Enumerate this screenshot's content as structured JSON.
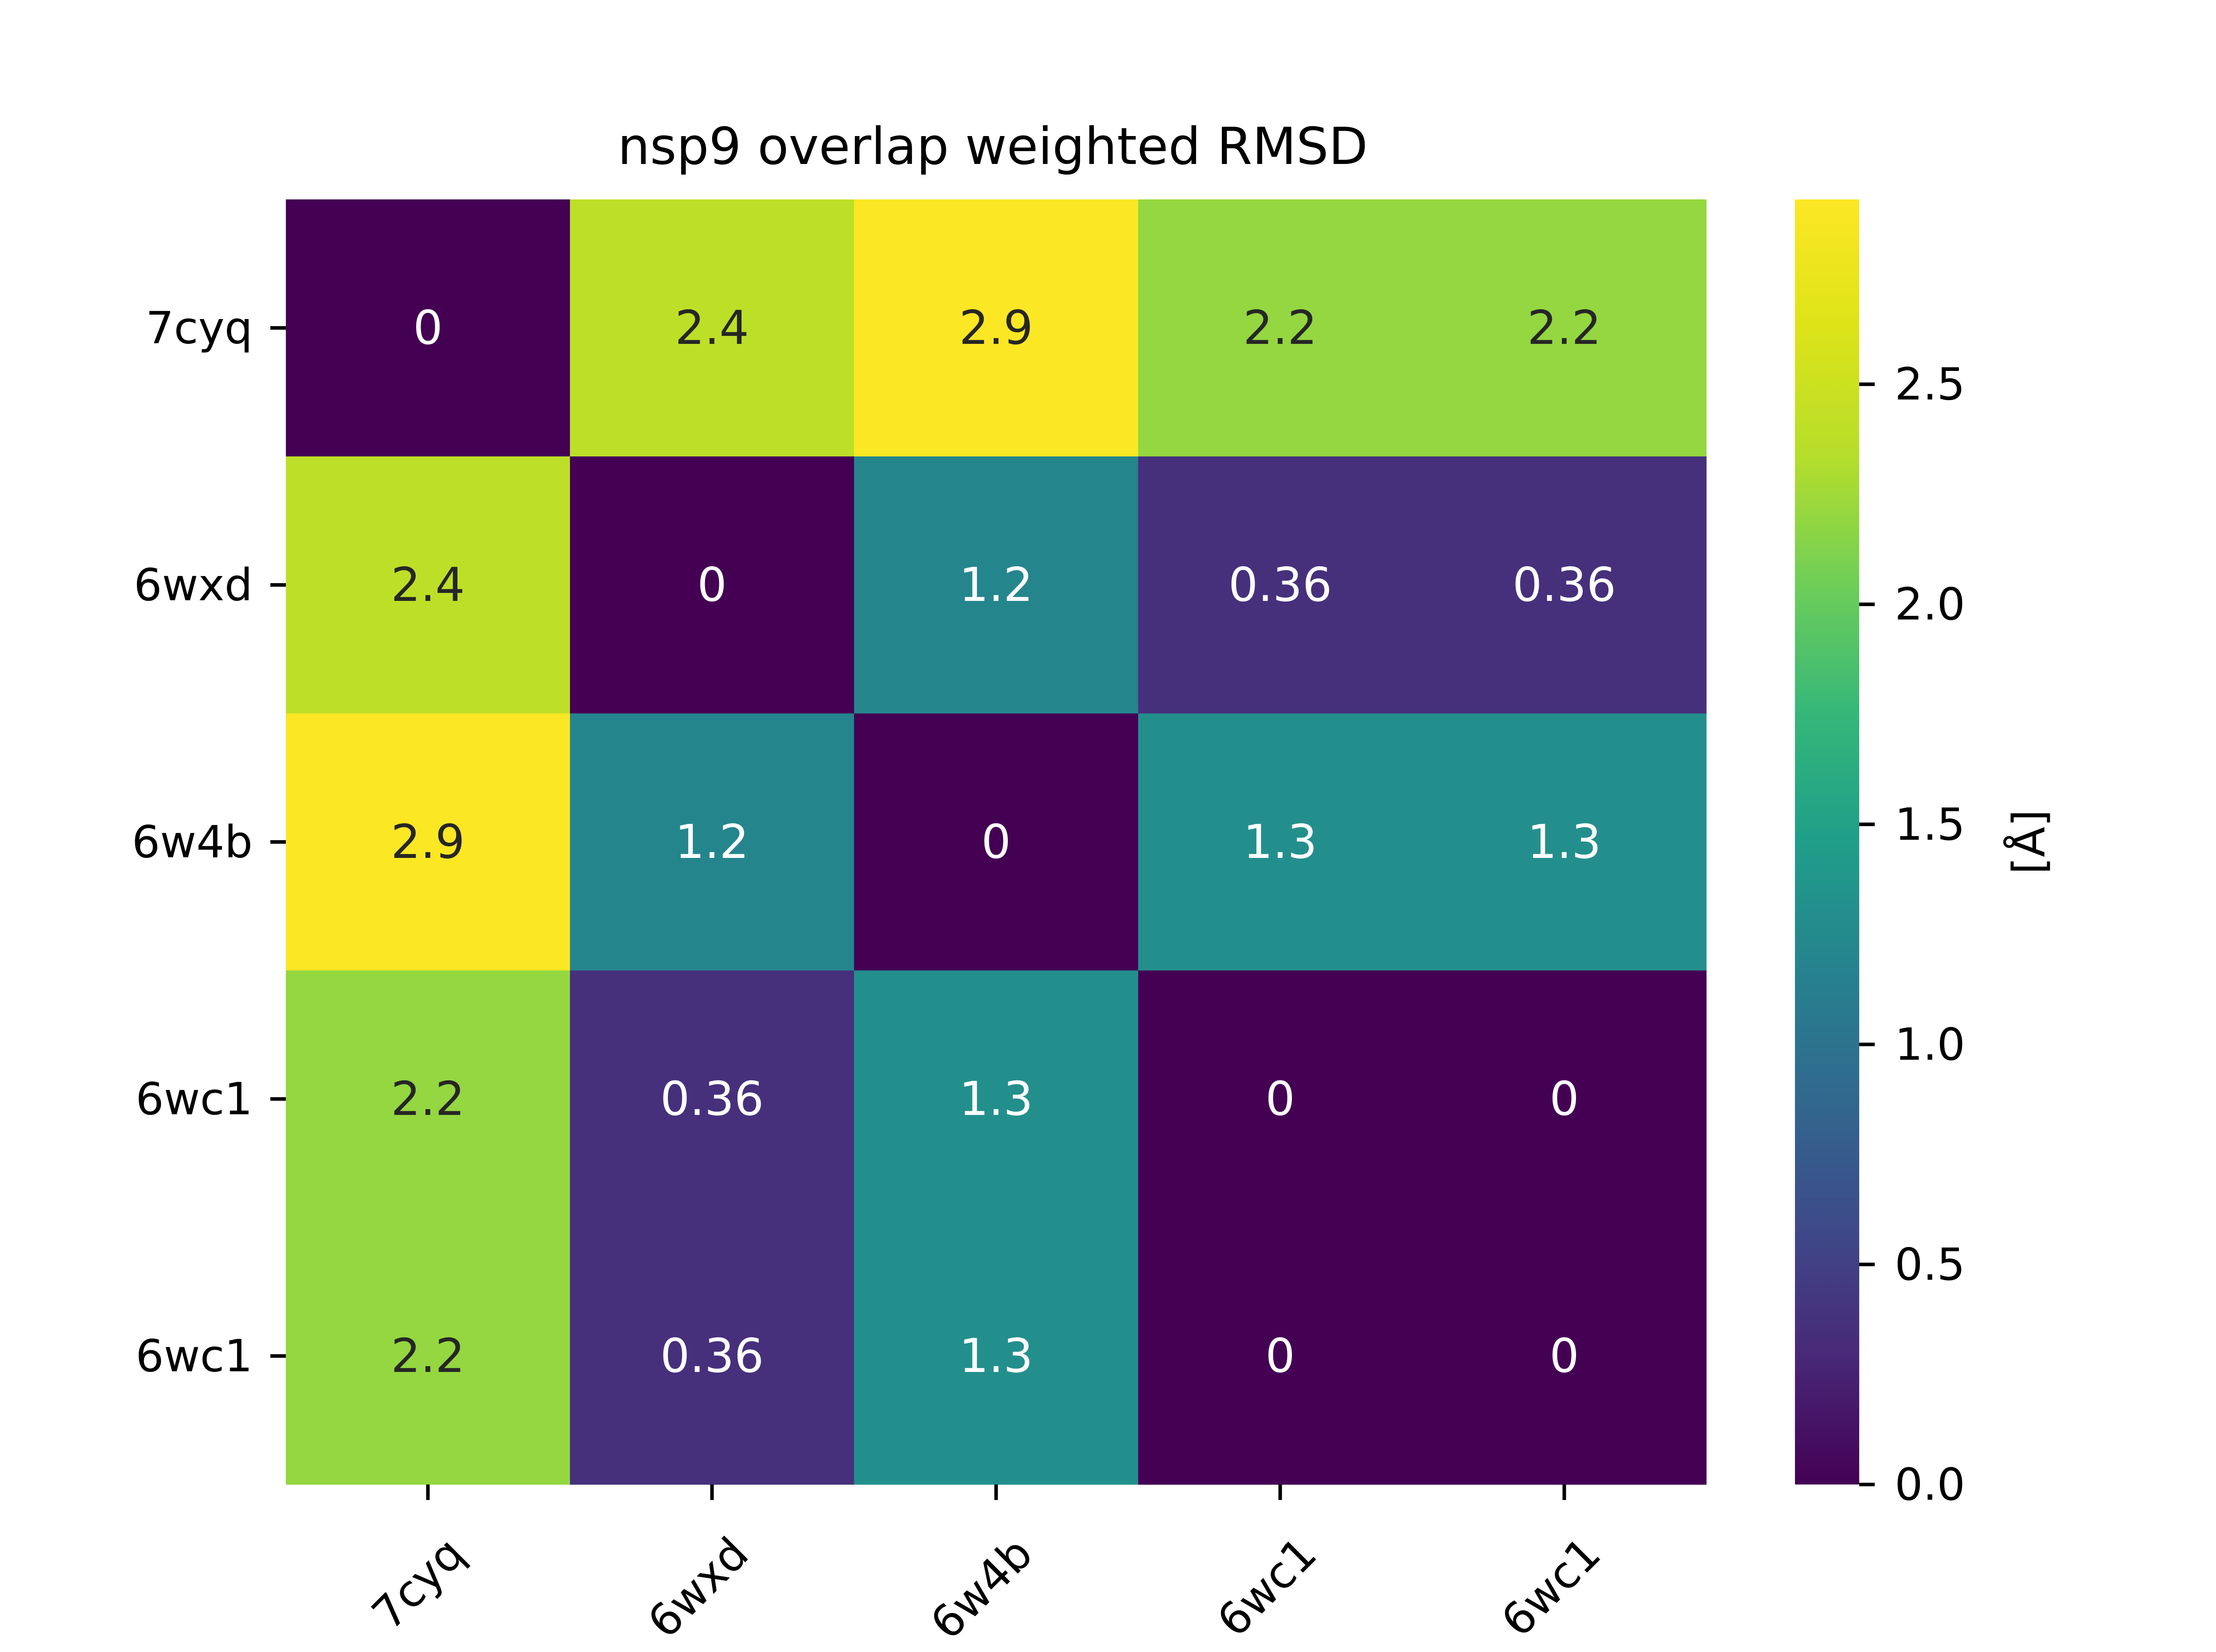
{
  "chart_data": {
    "type": "heatmap",
    "title": "nsp9 overlap weighted RMSD",
    "x_labels": [
      "7cyq",
      "6wxd",
      "6w4b",
      "6wc1",
      "6wc1"
    ],
    "y_labels": [
      "7cyq",
      "6wxd",
      "6w4b",
      "6wc1",
      "6wc1"
    ],
    "values": [
      [
        0,
        2.4,
        2.9,
        2.2,
        2.2
      ],
      [
        2.4,
        0,
        1.2,
        0.36,
        0.36
      ],
      [
        2.9,
        1.2,
        0,
        1.3,
        1.3
      ],
      [
        2.2,
        0.36,
        1.3,
        0,
        0
      ],
      [
        2.2,
        0.36,
        1.3,
        0,
        0
      ]
    ],
    "annotations": [
      [
        "0",
        "2.4",
        "2.9",
        "2.2",
        "2.2"
      ],
      [
        "2.4",
        "0",
        "1.2",
        "0.36",
        "0.36"
      ],
      [
        "2.9",
        "1.2",
        "0",
        "1.3",
        "1.3"
      ],
      [
        "2.2",
        "0.36",
        "1.3",
        "0",
        "0"
      ],
      [
        "2.2",
        "0.36",
        "1.3",
        "0",
        "0"
      ]
    ],
    "colormap": "viridis",
    "colorbar": {
      "label": "[Å]",
      "range": [
        0,
        2.92
      ],
      "ticks": [
        0.0,
        0.5,
        1.0,
        1.5,
        2.0,
        2.5
      ],
      "tick_labels": [
        "0.0",
        "0.5",
        "1.0",
        "1.5",
        "2.0",
        "2.5"
      ]
    },
    "x_tick_rotation": 45,
    "grid": false
  }
}
